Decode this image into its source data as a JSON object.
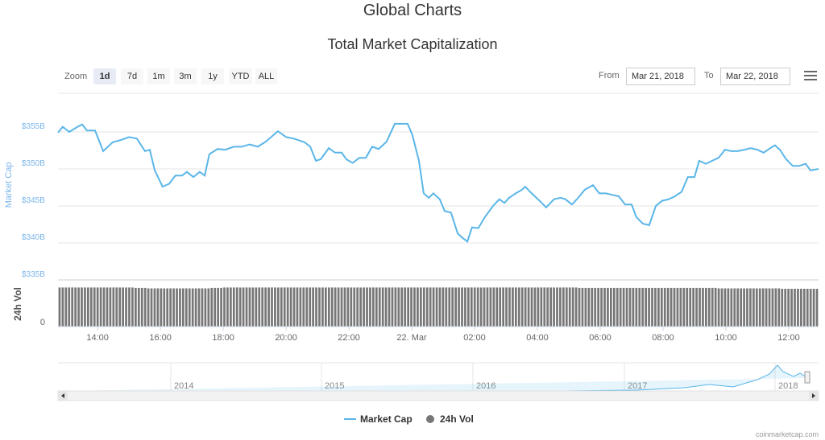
{
  "header": {
    "title": "Global Charts",
    "subtitle": "Total Market Capitalization"
  },
  "toolbar": {
    "zoom_label": "Zoom",
    "zoom_buttons": [
      "1d",
      "7d",
      "1m",
      "3m",
      "1y",
      "YTD",
      "ALL"
    ],
    "selected": "1d",
    "from_label": "From",
    "from_value": "Mar 21, 2018",
    "to_label": "To",
    "to_value": "Mar 22, 2018",
    "menu_icon": "hamburger-icon"
  },
  "colors": {
    "line": "#5ab6e8",
    "volume": "#777777",
    "axis_label": "#7cb5ec"
  },
  "footer": {
    "credit": "coinmarketcap.com"
  },
  "chart_data": {
    "type": "line",
    "title": "Total Market Capitalization",
    "ylabel": "Market Cap",
    "ylabel2": "24h Vol",
    "ylim": [
      335,
      357
    ],
    "y_ticks": [
      "$355B",
      "$350B",
      "$345B",
      "$340B",
      "$335B"
    ],
    "y_tick_values": [
      355,
      350,
      345,
      340,
      335
    ],
    "vol_ticks": [
      "0"
    ],
    "xlim_hours": [
      12.74,
      36.95
    ],
    "x_ticks": [
      "14:00",
      "16:00",
      "18:00",
      "20:00",
      "22:00",
      "22. Mar",
      "02:00",
      "04:00",
      "06:00",
      "08:00",
      "10:00",
      "12:00"
    ],
    "x_tick_hours": [
      14,
      16,
      18,
      20,
      22,
      24,
      26,
      28,
      30,
      32,
      34,
      36
    ],
    "series": [
      {
        "name": "Market Cap",
        "unit": "$B",
        "hours": [
          12.74,
          12.89,
          13.1,
          13.36,
          13.51,
          13.66,
          13.92,
          14.18,
          14.48,
          14.74,
          15.0,
          15.25,
          15.51,
          15.66,
          15.82,
          16.07,
          16.28,
          16.48,
          16.69,
          16.84,
          17.05,
          17.25,
          17.41,
          17.56,
          17.82,
          18.07,
          18.33,
          18.59,
          18.84,
          19.1,
          19.36,
          19.74,
          20.0,
          20.25,
          20.59,
          20.77,
          20.95,
          21.1,
          21.36,
          21.56,
          21.77,
          21.92,
          22.12,
          22.33,
          22.54,
          22.74,
          22.95,
          23.2,
          23.46,
          23.66,
          23.87,
          24.02,
          24.23,
          24.38,
          24.54,
          24.69,
          24.89,
          25.05,
          25.25,
          25.46,
          25.61,
          25.77,
          25.92,
          26.12,
          26.33,
          26.59,
          26.79,
          26.95,
          27.1,
          27.31,
          27.51,
          27.61,
          27.82,
          28.07,
          28.28,
          28.53,
          28.74,
          28.89,
          29.1,
          29.3,
          29.51,
          29.77,
          29.97,
          30.18,
          30.38,
          30.59,
          30.79,
          31.0,
          31.15,
          31.36,
          31.56,
          31.77,
          31.97,
          32.18,
          32.38,
          32.59,
          32.79,
          33.0,
          33.15,
          33.36,
          33.56,
          33.77,
          33.97,
          34.18,
          34.38,
          34.59,
          34.79,
          35.0,
          35.2,
          35.41,
          35.56,
          35.72,
          35.92,
          36.13,
          36.33,
          36.54,
          36.69,
          36.95
        ],
        "values": [
          354.9,
          355.7,
          355,
          355.7,
          356,
          355.2,
          355.2,
          352.4,
          353.6,
          353.9,
          354.3,
          354.1,
          352.4,
          352.6,
          349.8,
          347.6,
          348,
          349.1,
          349.1,
          349.6,
          348.9,
          349.6,
          349.1,
          352,
          352.7,
          352.6,
          353,
          353,
          353.3,
          353,
          353.7,
          355.1,
          354.3,
          354.1,
          353.6,
          353,
          351.1,
          351.3,
          352.8,
          352.2,
          352.2,
          351.3,
          350.8,
          351.5,
          351.5,
          353,
          352.7,
          353.7,
          356.1,
          356.1,
          356.1,
          354.6,
          351.1,
          346.7,
          346.1,
          346.7,
          345.9,
          344.3,
          344.1,
          341.3,
          340.7,
          340.2,
          342.1,
          342,
          343.5,
          345,
          345.9,
          345.4,
          346.1,
          346.7,
          347.2,
          347.6,
          346.7,
          345.7,
          344.8,
          345.9,
          346.1,
          345.9,
          345.2,
          346.1,
          347.2,
          347.8,
          346.7,
          346.7,
          346.5,
          346.3,
          345.2,
          345.2,
          343.5,
          342.6,
          342.4,
          345,
          345.7,
          345.9,
          346.3,
          346.9,
          348.9,
          348.9,
          351.1,
          350.7,
          351.1,
          351.5,
          352.6,
          352.4,
          352.4,
          352.6,
          352.8,
          352.6,
          352.2,
          352.8,
          353.2,
          352.6,
          351.3,
          350.4,
          350.4,
          350.7,
          349.8,
          350
        ]
      },
      {
        "name": "24h Vol",
        "relative_values": [
          0.9,
          0.9,
          0.9,
          0.9,
          0.9,
          0.9,
          0.89,
          0.88,
          0.88,
          0.88,
          0.88,
          0.88,
          0.89,
          0.9,
          0.9,
          0.9,
          0.9,
          0.9,
          0.9,
          0.9,
          0.9,
          0.9,
          0.9,
          0.9,
          0.9,
          0.9,
          0.9,
          0.9,
          0.9,
          0.9,
          0.9,
          0.9,
          0.9,
          0.9,
          0.9,
          0.9,
          0.9,
          0.9,
          0.9,
          0.9,
          0.9,
          0.89,
          0.89,
          0.89,
          0.89,
          0.89,
          0.89,
          0.89,
          0.89,
          0.89,
          0.89,
          0.89,
          0.88,
          0.88,
          0.88,
          0.88,
          0.88,
          0.87,
          0.87,
          0.87
        ]
      }
    ],
    "navigator": {
      "years": [
        "2014",
        "2015",
        "2016",
        "2017",
        "2018"
      ]
    },
    "legend": [
      {
        "label": "Market Cap",
        "symbol": "line"
      },
      {
        "label": "24h Vol",
        "symbol": "circle"
      }
    ],
    "legend_position": "bottom-center"
  }
}
